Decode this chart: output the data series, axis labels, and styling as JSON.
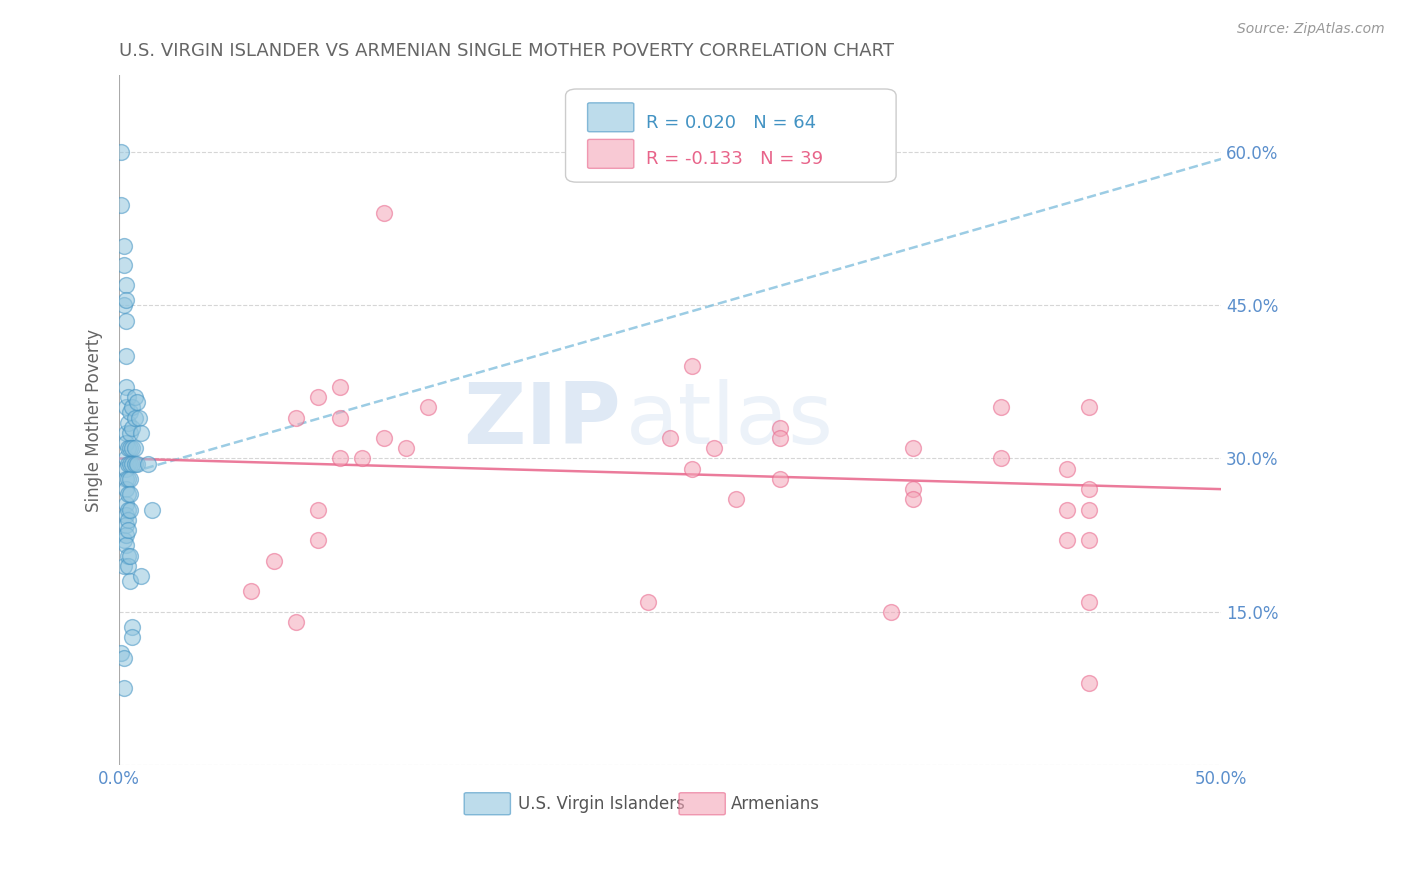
{
  "title": "U.S. VIRGIN ISLANDER VS ARMENIAN SINGLE MOTHER POVERTY CORRELATION CHART",
  "source": "Source: ZipAtlas.com",
  "ylabel": "Single Mother Poverty",
  "xlim": [
    0.0,
    0.5
  ],
  "ylim": [
    0.0,
    0.675
  ],
  "xticks": [
    0.0,
    0.1,
    0.2,
    0.3,
    0.4,
    0.5
  ],
  "yticks": [
    0.0,
    0.15,
    0.3,
    0.45,
    0.6
  ],
  "xticklabels": [
    "0.0%",
    "",
    "",
    "",
    "",
    "50.0%"
  ],
  "right_yticklabels": [
    "15.0%",
    "30.0%",
    "45.0%",
    "60.0%"
  ],
  "blue_color": "#92c5de",
  "pink_color": "#f4a6b8",
  "blue_edge_color": "#4393c3",
  "pink_edge_color": "#e8648a",
  "blue_trend_color": "#7bbcdb",
  "pink_trend_color": "#e8648a",
  "title_color": "#666666",
  "axis_color": "#5b8fcc",
  "legend_blue_R": "R = 0.020",
  "legend_blue_N": "N = 64",
  "legend_pink_R": "R = -0.133",
  "legend_pink_N": "N = 39",
  "watermark_zip": "ZIP",
  "watermark_atlas": "atlas",
  "blue_scatter_x": [
    0.001,
    0.001,
    0.001,
    0.002,
    0.002,
    0.002,
    0.002,
    0.002,
    0.002,
    0.002,
    0.003,
    0.003,
    0.003,
    0.003,
    0.003,
    0.003,
    0.003,
    0.003,
    0.003,
    0.003,
    0.003,
    0.003,
    0.003,
    0.003,
    0.003,
    0.003,
    0.003,
    0.004,
    0.004,
    0.004,
    0.004,
    0.004,
    0.004,
    0.004,
    0.004,
    0.004,
    0.004,
    0.004,
    0.005,
    0.005,
    0.005,
    0.005,
    0.005,
    0.005,
    0.005,
    0.005,
    0.005,
    0.006,
    0.006,
    0.006,
    0.006,
    0.006,
    0.006,
    0.007,
    0.007,
    0.007,
    0.007,
    0.008,
    0.008,
    0.009,
    0.01,
    0.01,
    0.013,
    0.015
  ],
  "blue_scatter_y": [
    0.6,
    0.548,
    0.11,
    0.508,
    0.489,
    0.45,
    0.22,
    0.195,
    0.105,
    0.075,
    0.47,
    0.455,
    0.435,
    0.4,
    0.37,
    0.35,
    0.325,
    0.315,
    0.3,
    0.29,
    0.28,
    0.27,
    0.255,
    0.245,
    0.235,
    0.225,
    0.215,
    0.36,
    0.335,
    0.31,
    0.295,
    0.28,
    0.265,
    0.25,
    0.24,
    0.23,
    0.205,
    0.195,
    0.345,
    0.325,
    0.31,
    0.295,
    0.28,
    0.265,
    0.25,
    0.205,
    0.18,
    0.35,
    0.33,
    0.31,
    0.295,
    0.135,
    0.125,
    0.36,
    0.34,
    0.31,
    0.295,
    0.355,
    0.295,
    0.34,
    0.325,
    0.185,
    0.295,
    0.25
  ],
  "pink_scatter_x": [
    0.06,
    0.07,
    0.08,
    0.08,
    0.09,
    0.09,
    0.09,
    0.1,
    0.1,
    0.1,
    0.11,
    0.12,
    0.12,
    0.13,
    0.14,
    0.24,
    0.25,
    0.26,
    0.26,
    0.27,
    0.28,
    0.3,
    0.3,
    0.3,
    0.35,
    0.36,
    0.36,
    0.36,
    0.4,
    0.4,
    0.43,
    0.43,
    0.43,
    0.44,
    0.44,
    0.44,
    0.44,
    0.44,
    0.44
  ],
  "pink_scatter_y": [
    0.17,
    0.2,
    0.14,
    0.34,
    0.25,
    0.22,
    0.36,
    0.3,
    0.34,
    0.37,
    0.3,
    0.32,
    0.54,
    0.31,
    0.35,
    0.16,
    0.32,
    0.39,
    0.29,
    0.31,
    0.26,
    0.33,
    0.28,
    0.32,
    0.15,
    0.31,
    0.27,
    0.26,
    0.35,
    0.3,
    0.29,
    0.25,
    0.22,
    0.35,
    0.27,
    0.25,
    0.22,
    0.16,
    0.08
  ],
  "blue_trend_x": [
    0.0,
    0.5
  ],
  "blue_trend_y": [
    0.283,
    0.593
  ],
  "pink_trend_x": [
    0.0,
    0.5
  ],
  "pink_trend_y": [
    0.3,
    0.27
  ]
}
